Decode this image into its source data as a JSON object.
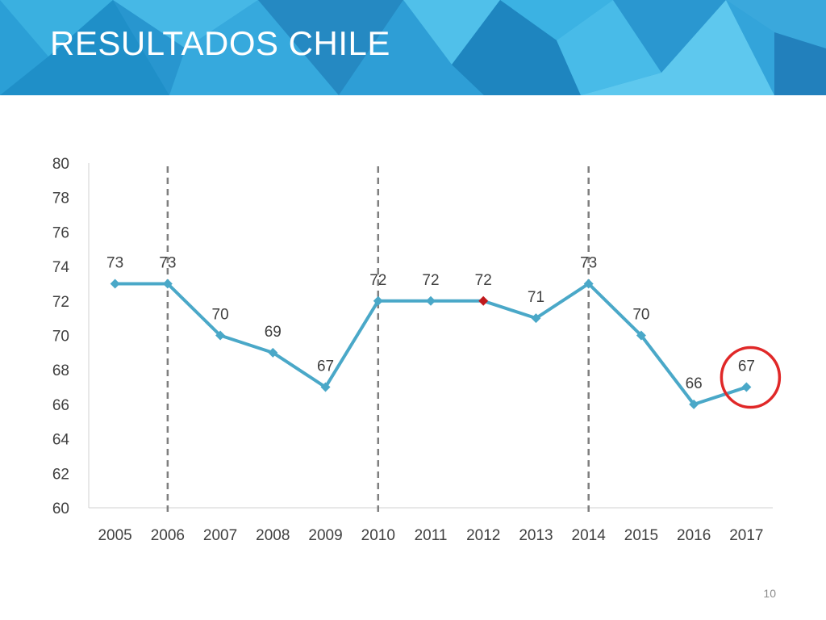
{
  "slide": {
    "title": "RESULTADOS CHILE",
    "page_number": "10"
  },
  "chart_data": {
    "type": "line",
    "title": "",
    "xlabel": "",
    "ylabel": "",
    "categories": [
      "2005",
      "2006",
      "2007",
      "2008",
      "2009",
      "2010",
      "2011",
      "2012",
      "2013",
      "2014",
      "2015",
      "2016",
      "2017"
    ],
    "series": [
      {
        "values": [
          73,
          73,
          70,
          69,
          67,
          72,
          72,
          72,
          71,
          73,
          70,
          66,
          67
        ]
      }
    ],
    "data_labels": [
      "73",
      "73",
      "70",
      "69",
      "67",
      "72",
      "72",
      "72",
      "71",
      "73",
      "70",
      "66",
      "67"
    ],
    "ylim": [
      60,
      80
    ],
    "yticks": [
      60,
      62,
      64,
      66,
      68,
      70,
      72,
      74,
      76,
      78,
      80
    ],
    "gridlines": false,
    "line_color": "#4aa8c8",
    "highlight_point": {
      "category": "2012",
      "color": "#c0191c"
    },
    "dashed_marker_years": [
      "2006",
      "2010",
      "2014"
    ],
    "circled_point": {
      "category": "2017",
      "color": "#e02828"
    }
  }
}
